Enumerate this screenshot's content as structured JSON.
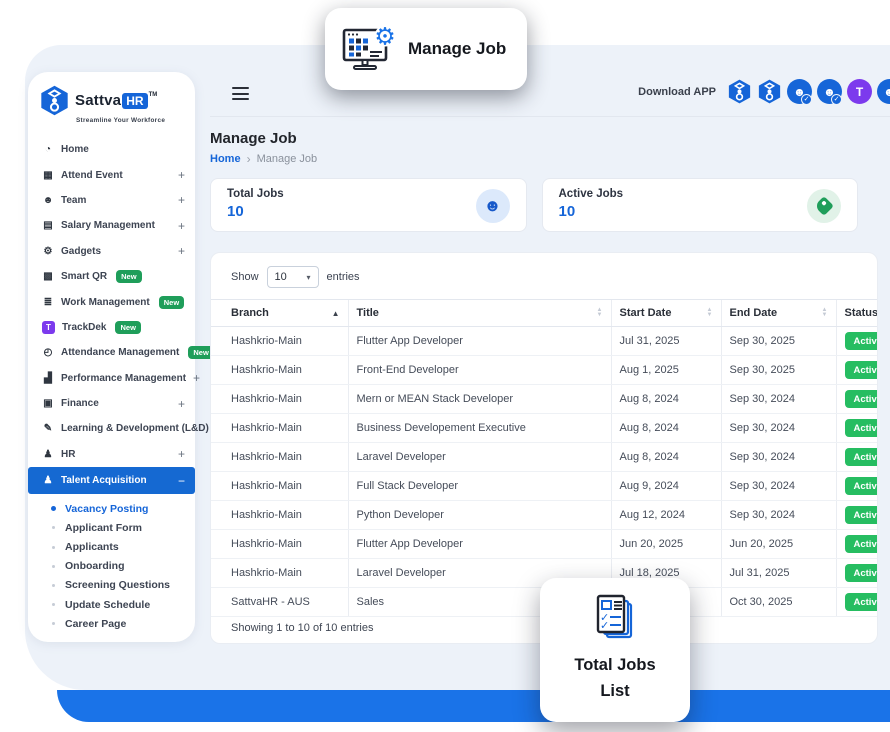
{
  "overlay": {
    "manage_job_label": "Manage Job",
    "total_jobs_list_line1": "Total Jobs",
    "total_jobs_list_line2": "List"
  },
  "header": {
    "download_app_label": "Download APP",
    "app_icons": [
      {
        "name": "sattvahr-app-icon",
        "type": "logo"
      },
      {
        "name": "sattvahr-app-icon",
        "type": "logo"
      },
      {
        "name": "attendance-app-icon",
        "type": "person"
      },
      {
        "name": "attendance-app-icon",
        "type": "person"
      },
      {
        "name": "trackdek-app-icon",
        "type": "trackdek",
        "letter": "T"
      },
      {
        "name": "sattvahr-app-icon",
        "type": "person"
      }
    ]
  },
  "sidebar": {
    "logo": {
      "name_part1": "Sattva",
      "name_part2": "HR",
      "trademark": "TM",
      "tagline": "Streamline Your Workforce"
    },
    "items": [
      {
        "icon": "dashboard-icon",
        "label": "Home"
      },
      {
        "icon": "calendar-icon",
        "label": "Attend Event",
        "expander": "+"
      },
      {
        "icon": "team-icon",
        "label": "Team",
        "expander": "+"
      },
      {
        "icon": "salary-icon",
        "label": "Salary Management",
        "expander": "+"
      },
      {
        "icon": "gadgets-icon",
        "label": "Gadgets",
        "expander": "+"
      },
      {
        "icon": "qr-icon",
        "label": "Smart QR",
        "badge": "New"
      },
      {
        "icon": "tasks-icon",
        "label": "Work Management",
        "badge": "New"
      },
      {
        "icon": "trackdek-icon",
        "icon_letter": "T",
        "label": "TrackDek",
        "badge": "New"
      },
      {
        "icon": "clock-icon",
        "label": "Attendance Management",
        "badge": "New",
        "expander": "+"
      },
      {
        "icon": "performance-icon",
        "label": "Performance Management",
        "expander": "+"
      },
      {
        "icon": "finance-icon",
        "label": "Finance",
        "expander": "+"
      },
      {
        "icon": "learning-icon",
        "label": "Learning & Development (L&D)",
        "expander": "+"
      },
      {
        "icon": "hr-icon",
        "label": "HR",
        "expander": "+"
      },
      {
        "icon": "talent-icon",
        "label": "Talent Acquisition",
        "expander": "−",
        "active": true
      }
    ],
    "submenu": [
      {
        "label": "Vacancy Posting",
        "active": true
      },
      {
        "label": "Applicant Form"
      },
      {
        "label": "Applicants"
      },
      {
        "label": "Onboarding"
      },
      {
        "label": "Screening Questions"
      },
      {
        "label": "Update Schedule"
      },
      {
        "label": "Career Page"
      }
    ]
  },
  "page": {
    "title": "Manage Job",
    "breadcrumb": [
      {
        "label": "Home"
      },
      {
        "label": "Manage Job"
      }
    ],
    "stats": [
      {
        "label": "Total Jobs",
        "value": "10",
        "icon": "people-icon"
      },
      {
        "label": "Active Jobs",
        "value": "10",
        "icon": "tag-icon"
      }
    ]
  },
  "table": {
    "show_label": "Show",
    "entries_value": "10",
    "entries_label": "entries",
    "columns": [
      {
        "label": "Branch",
        "sort": "asc"
      },
      {
        "label": "Title",
        "sort": "both"
      },
      {
        "label": "Start Date",
        "sort": "both"
      },
      {
        "label": "End Date",
        "sort": "both"
      },
      {
        "label": "Status",
        "sort": "none"
      }
    ],
    "rows": [
      {
        "branch": "Hashkrio-Main",
        "title": "Flutter App Developer",
        "start_date": "Jul 31, 2025",
        "end_date": "Sep 30, 2025",
        "status": "Active"
      },
      {
        "branch": "Hashkrio-Main",
        "title": "Front-End Developer",
        "start_date": "Aug 1, 2025",
        "end_date": "Sep 30, 2025",
        "status": "Active"
      },
      {
        "branch": "Hashkrio-Main",
        "title": "Mern or MEAN Stack Developer",
        "start_date": "Aug 8, 2024",
        "end_date": "Sep 30, 2024",
        "status": "Active"
      },
      {
        "branch": "Hashkrio-Main",
        "title": "Business Developement Executive",
        "start_date": "Aug 8, 2024",
        "end_date": "Sep 30, 2024",
        "status": "Active"
      },
      {
        "branch": "Hashkrio-Main",
        "title": "Laravel Developer",
        "start_date": "Aug 8, 2024",
        "end_date": "Sep 30, 2024",
        "status": "Active"
      },
      {
        "branch": "Hashkrio-Main",
        "title": "Full Stack Developer",
        "start_date": "Aug 9, 2024",
        "end_date": "Sep 30, 2024",
        "status": "Active"
      },
      {
        "branch": "Hashkrio-Main",
        "title": "Python Developer",
        "start_date": "Aug 12, 2024",
        "end_date": "Sep 30, 2024",
        "status": "Active"
      },
      {
        "branch": "Hashkrio-Main",
        "title": "Flutter App Developer",
        "start_date": "Jun 20, 2025",
        "end_date": "Jun 20, 2025",
        "status": "Active"
      },
      {
        "branch": "Hashkrio-Main",
        "title": "Laravel Developer",
        "start_date": "Jul 18, 2025",
        "end_date": "Jul 31, 2025",
        "status": "Active"
      },
      {
        "branch": "SattvaHR - AUS",
        "title": "Sales",
        "start_date": "",
        "end_date": "Oct 30, 2025",
        "status": "Active"
      }
    ],
    "footer": "Showing 1 to 10 of 10 entries"
  },
  "colors": {
    "accent_blue": "#1565d8",
    "band_blue": "#1a73e8",
    "active_green": "#26bd61",
    "new_badge_green": "#1f9e5a",
    "trackdek_purple": "#7c3aed"
  }
}
